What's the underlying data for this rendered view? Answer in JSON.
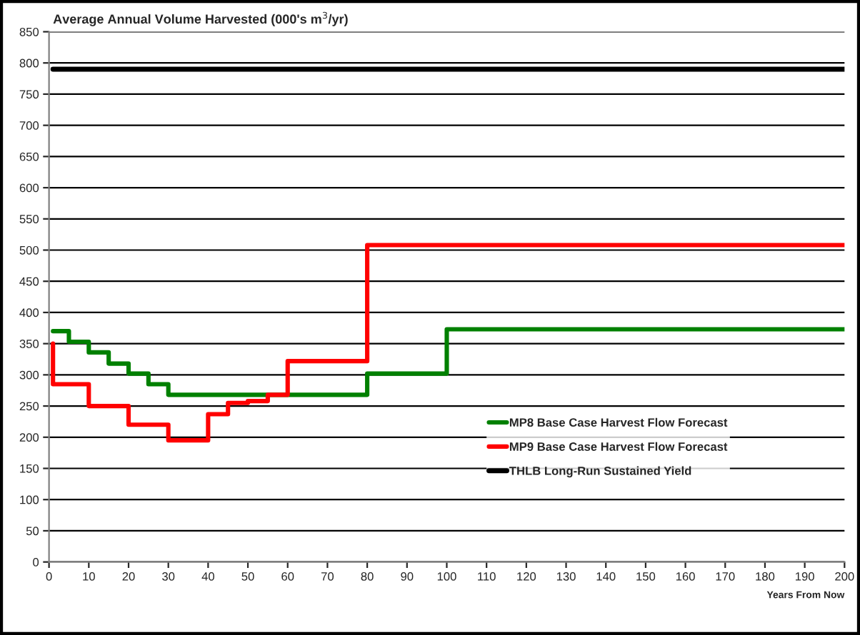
{
  "chart_data": {
    "type": "step",
    "title": "Average Annual Volume Harvested (000's m$^{3}$/yr)",
    "xlabel": "Years From Now",
    "series": [
      {
        "name": "MP8 Base Case Harvest Flow Forecast",
        "color": "#008000",
        "x": [
          1,
          5,
          10,
          15,
          20,
          25,
          30,
          80,
          100,
          200
        ],
        "values": [
          370,
          353,
          336,
          318,
          302,
          285,
          268,
          302,
          373,
          373
        ]
      },
      {
        "name": "MP9 Base Case Harvest Flow Forecast",
        "color": "#ff0000",
        "x": [
          1,
          1,
          10,
          20,
          30,
          40,
          45,
          50,
          55,
          60,
          80,
          200
        ],
        "values": [
          350,
          285,
          250,
          220,
          195,
          237,
          255,
          258,
          268,
          322,
          508,
          508
        ]
      },
      {
        "name": "THLB Long-Run Sustained Yield",
        "color": "#000000",
        "type": "line",
        "x": [
          1,
          200
        ],
        "values": [
          790,
          790
        ]
      }
    ],
    "xlim": [
      0,
      200
    ],
    "xticks": [
      0,
      10,
      20,
      30,
      40,
      50,
      60,
      70,
      80,
      90,
      100,
      110,
      120,
      130,
      140,
      150,
      160,
      170,
      180,
      190,
      200
    ],
    "ylim": [
      0,
      850
    ],
    "yticks": [
      0,
      50,
      100,
      150,
      200,
      250,
      300,
      350,
      400,
      450,
      500,
      550,
      600,
      650,
      700,
      750,
      800,
      850
    ],
    "grid": "y",
    "legend": "bottom right"
  }
}
